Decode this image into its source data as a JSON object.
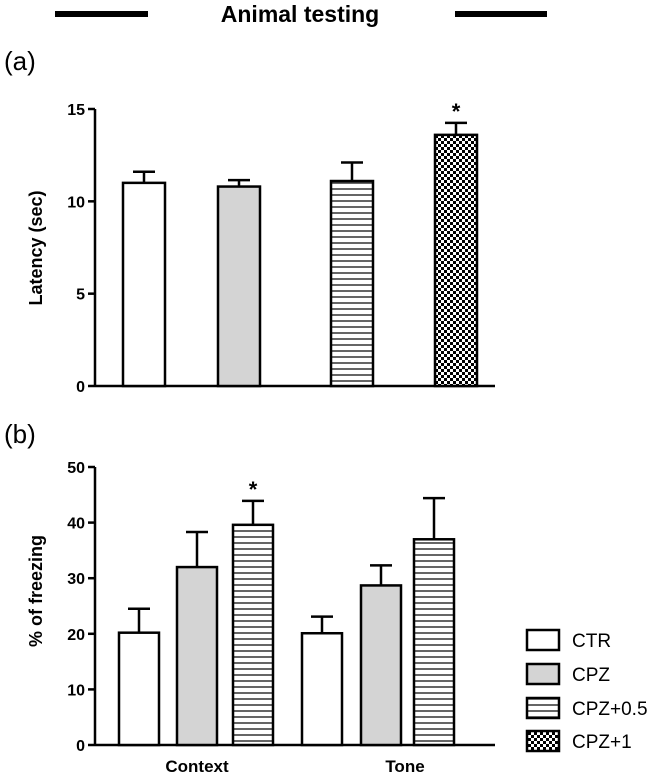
{
  "header": {
    "title": "Animal testing"
  },
  "legend": {
    "items": [
      {
        "label": "CTR",
        "pattern": "white"
      },
      {
        "label": "CPZ",
        "pattern": "gray"
      },
      {
        "label": "CPZ+0.5",
        "pattern": "hstripe"
      },
      {
        "label": "CPZ+1",
        "pattern": "checker"
      }
    ]
  },
  "colors": {
    "bar_gray": "#d4d4d4",
    "ink": "#000000",
    "white": "#ffffff"
  },
  "chart_data": [
    {
      "panel": "(a)",
      "type": "bar",
      "ylabel": "Latency (sec)",
      "ylim": [
        0,
        15
      ],
      "yticks": [
        0,
        5,
        10,
        15
      ],
      "categories": [
        "CTR",
        "CPZ",
        "CPZ+0.5",
        "CPZ+1"
      ],
      "values": [
        11.0,
        10.8,
        11.1,
        13.6
      ],
      "errors": [
        0.6,
        0.35,
        1.0,
        0.65
      ],
      "significance": [
        "",
        "",
        "",
        "*"
      ],
      "patterns": [
        "white",
        "gray",
        "hstripe",
        "checker"
      ]
    },
    {
      "panel": "(b)",
      "type": "bar",
      "ylabel": "% of freezing",
      "ylim": [
        0,
        50
      ],
      "yticks": [
        0,
        10,
        20,
        30,
        40,
        50
      ],
      "groups": [
        "Context",
        "Tone"
      ],
      "series": [
        {
          "name": "CTR",
          "pattern": "white",
          "values": [
            20.2,
            20.1
          ],
          "errors": [
            4.3,
            3.0
          ]
        },
        {
          "name": "CPZ",
          "pattern": "gray",
          "values": [
            32.0,
            28.7
          ],
          "errors": [
            6.3,
            3.6
          ]
        },
        {
          "name": "CPZ+0.5",
          "pattern": "hstripe",
          "values": [
            39.6,
            37.0
          ],
          "errors": [
            4.3,
            7.4
          ]
        }
      ],
      "significance": [
        [
          "",
          "",
          "*"
        ],
        [
          "",
          "",
          ""
        ]
      ]
    }
  ]
}
